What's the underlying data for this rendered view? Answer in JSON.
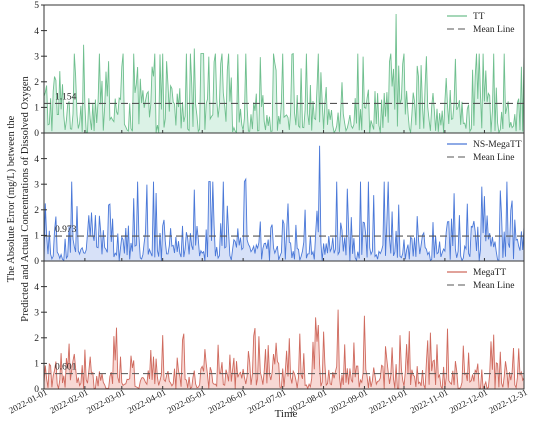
{
  "chart_data": {
    "type": "area",
    "xlabel": "Time",
    "ylabel_lines": [
      "The Absolute Error (mg/L) between the",
      "Predicted and Actual Concentrations of Dissolved Oxygen"
    ],
    "x_ticks": [
      "2022-01-01",
      "2022-02-01",
      "2022-03-01",
      "2022-04-01",
      "2022-05-01",
      "2022-06-01",
      "2022-07-01",
      "2022-08-01",
      "2022-09-01",
      "2022-10-01",
      "2022-11-01",
      "2022-12-01",
      "2022-12-31"
    ],
    "x_range": [
      "2022-01-01",
      "2022-12-31"
    ],
    "ylim": [
      0,
      5
    ],
    "yticks": [
      0,
      1,
      2,
      3,
      4,
      5
    ],
    "panels": [
      {
        "series": "TT",
        "mean_label": "Mean Line",
        "mean": 1.154,
        "mean_text": "1.154",
        "color": "#6fbf8e",
        "fill": "#cfeedd",
        "yticks_shown": [
          0,
          1,
          2,
          3,
          4,
          5
        ],
        "notable_peaks": [
          {
            "date": "2022-01-31",
            "value": 3.45
          },
          {
            "date": "2022-09-25",
            "value": 4.65
          },
          {
            "date": "2022-04-25",
            "value": 3.3
          }
        ]
      },
      {
        "series": "NS-MegaTT",
        "mean_label": "Mean Line",
        "mean": 0.973,
        "mean_text": "0.973",
        "color": "#4a78d8",
        "fill": "#c9d7f6",
        "yticks_shown": [
          0,
          1,
          2,
          3,
          4
        ],
        "notable_peaks": [
          {
            "date": "2022-07-29",
            "value": 4.5
          },
          {
            "date": "2022-06-03",
            "value": 3.2
          }
        ]
      },
      {
        "series": "MegaTT",
        "mean_label": "Mean Line",
        "mean": 0.601,
        "mean_text": "0.601",
        "color": "#cf6a5e",
        "fill": "#f6cbc5",
        "yticks_shown": [
          0,
          1,
          2,
          3,
          4
        ],
        "notable_peaks": [
          {
            "date": "2022-07-28",
            "value": 2.5
          },
          {
            "date": "2022-04-01",
            "value": 2.1
          },
          {
            "date": "2022-09-28",
            "value": 2.1
          }
        ]
      }
    ]
  }
}
